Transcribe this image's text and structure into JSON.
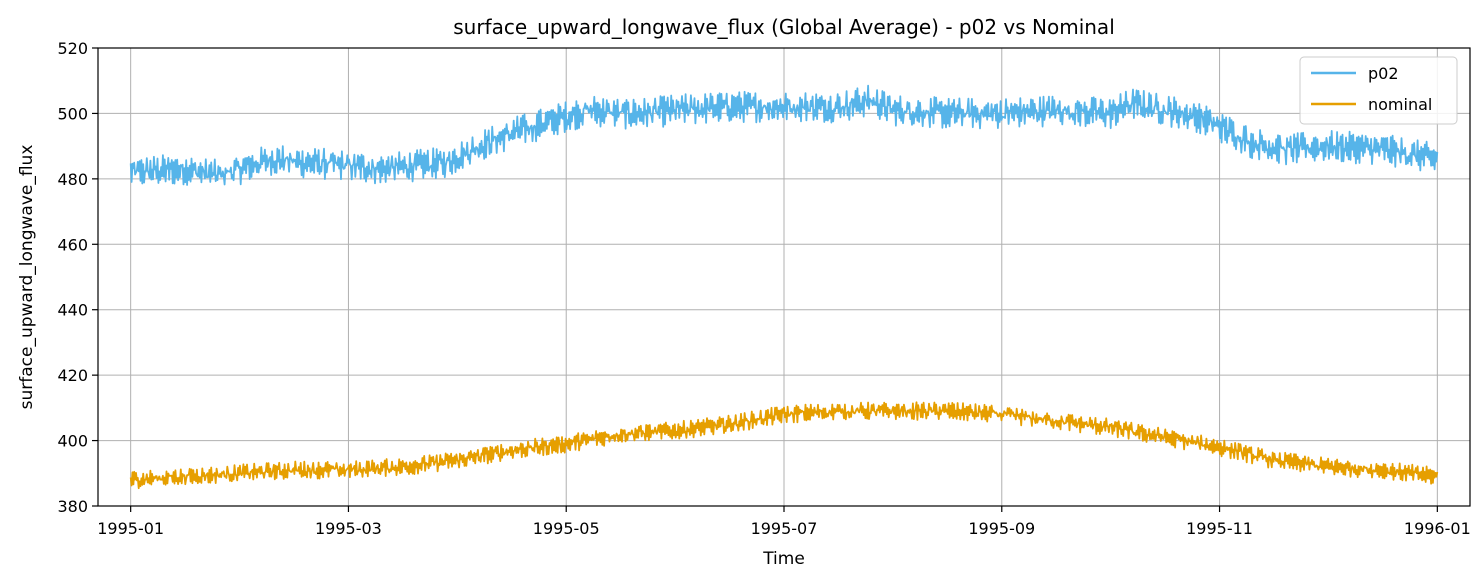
{
  "chart_data": {
    "type": "line",
    "title": "surface_upward_longwave_flux (Global Average) - p02 vs Nominal",
    "xlabel": "Time",
    "ylabel": "surface_upward_longwave_flux",
    "ylim": [
      380,
      520
    ],
    "yticks": [
      380,
      400,
      420,
      440,
      460,
      480,
      500,
      520
    ],
    "xlim_months": [
      -0.3,
      12.3
    ],
    "xticks": [
      {
        "label": "1995-01",
        "month": 0
      },
      {
        "label": "1995-03",
        "month": 2
      },
      {
        "label": "1995-05",
        "month": 4
      },
      {
        "label": "1995-07",
        "month": 6
      },
      {
        "label": "1995-09",
        "month": 8
      },
      {
        "label": "1995-11",
        "month": 10
      },
      {
        "label": "1996-01",
        "month": 12
      }
    ],
    "grid": true,
    "legend": {
      "placement": "top-right"
    },
    "series": [
      {
        "name": "p02",
        "color": "#56b4e9",
        "noise_amplitude": 3,
        "x_months": [
          0,
          0.5,
          0.8,
          1.0,
          1.3,
          1.6,
          2.0,
          2.3,
          2.6,
          2.9,
          3.2,
          3.5,
          3.8,
          4.0,
          4.2,
          4.5,
          4.7,
          5.0,
          5.5,
          6.0,
          6.5,
          6.8,
          7.0,
          7.5,
          8.0,
          8.5,
          9.0,
          9.2,
          9.5,
          9.8,
          10.0,
          10.3,
          10.6,
          11.0,
          11.5,
          12.0
        ],
        "values": [
          482,
          483,
          481,
          483,
          486,
          485,
          484,
          483,
          484,
          485,
          490,
          494,
          497,
          499,
          501,
          500,
          500,
          501,
          502,
          502,
          502,
          504,
          501,
          500,
          500,
          501,
          500,
          503,
          501,
          499,
          496,
          491,
          489,
          490,
          489,
          486
        ]
      },
      {
        "name": "nominal",
        "color": "#e69f00",
        "noise_amplitude": 1.7,
        "x_months": [
          0,
          0.5,
          1.0,
          1.5,
          2.0,
          2.5,
          3.0,
          3.5,
          4.0,
          4.5,
          5.0,
          5.5,
          6.0,
          6.5,
          7.0,
          7.5,
          8.0,
          8.5,
          9.0,
          9.5,
          10.0,
          10.5,
          11.0,
          11.5,
          12.0
        ],
        "values": [
          388,
          389,
          390,
          391,
          391,
          392,
          394,
          397,
          399,
          402,
          403,
          405,
          408,
          409,
          409,
          409,
          408,
          406,
          404,
          401,
          398,
          394,
          392,
          391,
          389
        ]
      }
    ]
  }
}
